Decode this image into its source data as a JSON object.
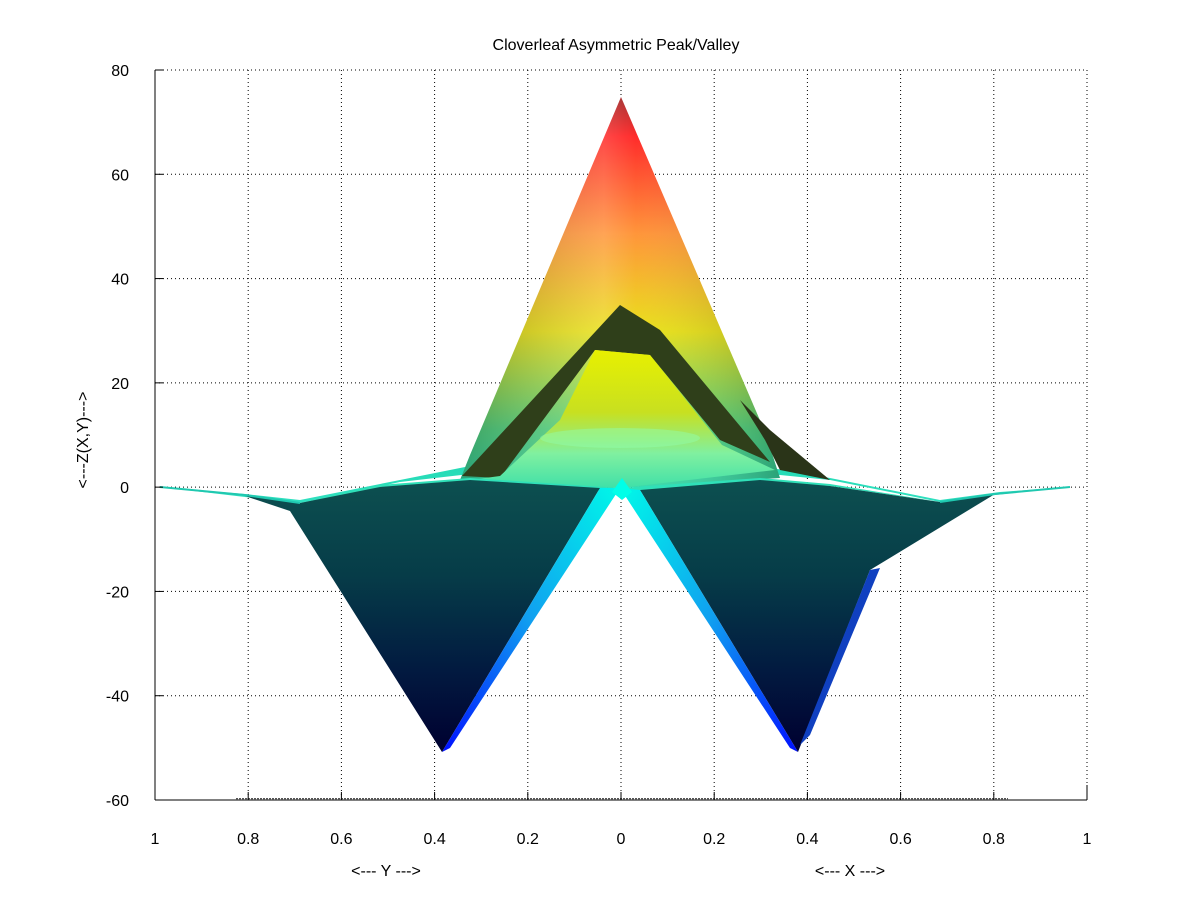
{
  "chart_data": {
    "type": "surface",
    "title": "Cloverleaf Asymmetric Peak/Valley",
    "xlabel": "<--- X --->",
    "ylabel": "<--- Y --->",
    "zlabel": "<---Z(X,Y)--->",
    "zlim": [
      -60,
      80
    ],
    "z_ticks": [
      "-60",
      "-40",
      "-20",
      "0",
      "20",
      "40",
      "60",
      "80"
    ],
    "y_ticks": [
      "1",
      "0.8",
      "0.6",
      "0.4",
      "0.2"
    ],
    "center_tick": "0",
    "x_ticks": [
      "0.2",
      "0.4",
      "0.6",
      "0.8",
      "1"
    ],
    "grid": true,
    "colormap": "jet",
    "features": [
      {
        "kind": "peak",
        "y": 0,
        "x": 0,
        "z": 75
      },
      {
        "kind": "inner-peak",
        "y": 0,
        "x": 0,
        "z": 34
      },
      {
        "kind": "valley",
        "y": 0.38,
        "x": 0,
        "z": -51
      },
      {
        "kind": "valley",
        "y": 0,
        "x": 0.38,
        "z": -51
      }
    ]
  },
  "colors": {
    "peak_top": "#ff2020",
    "mid": "#e8e800",
    "green": "#40e0a0",
    "cyan": "#00ffe0",
    "dark_teal": "#0b4a4a",
    "navy": "#000038",
    "blue_edge": "#0000ff"
  }
}
